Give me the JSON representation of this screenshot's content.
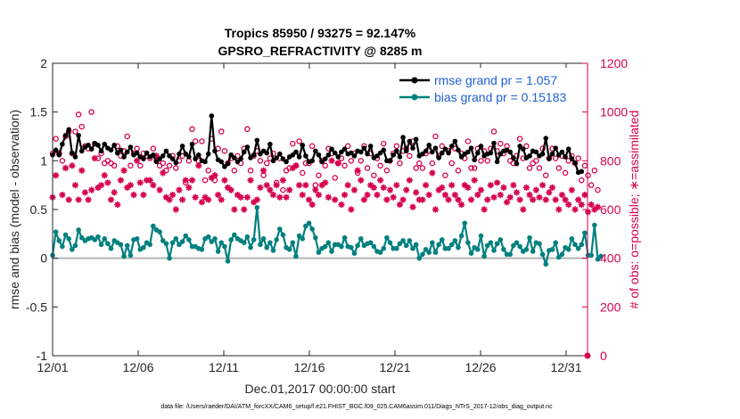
{
  "chart_data": {
    "type": "line",
    "title_line1": "Tropics 85950 / 93275 = 92.147%",
    "title_line2": "GPSRO_REFRACTIVITY @ 8285 m",
    "xlabel": "Dec.01,2017 00:00:00 start",
    "ylabel_left": "rmse and bias (model - observation)",
    "ylabel_right": "# of obs: o=possible; ∗=assimilated",
    "footnote": "data file: /Users/raeder/DAI/ATM_forcXX/CAM6_setup/f.e21.FHIST_BGC.f09_025.CAM6assim.011/Diags_NTrS_2017-12/obs_diag_output.nc",
    "x_ticks": [
      "12/01",
      "12/06",
      "12/11",
      "12/16",
      "12/21",
      "12/26",
      "12/31"
    ],
    "x_tick_days": [
      0,
      5,
      10,
      15,
      20,
      25,
      30
    ],
    "xlim": [
      0,
      31.25
    ],
    "ylim_left": [
      -1,
      2
    ],
    "y_ticks_left": [
      "-1",
      "-0.5",
      "0",
      "0.5",
      "1",
      "1.5",
      "2"
    ],
    "y_tick_values_left": [
      -1,
      -0.5,
      0,
      0.5,
      1,
      1.5,
      2
    ],
    "ylim_right": [
      0,
      1200
    ],
    "y_ticks_right": [
      "0",
      "200",
      "400",
      "600",
      "800",
      "1000",
      "1200"
    ],
    "y_tick_values_right": [
      0,
      200,
      400,
      600,
      800,
      1000,
      1200
    ],
    "legend": [
      "rmse grand pr = 1.057",
      "bias grand pr = 0.15183"
    ],
    "legend_position": "top-right",
    "colors": {
      "rmse": "#000000",
      "bias": "#00807f",
      "obs": "#d6004f",
      "zero": "#b3b3b3",
      "legend_text": "#1f5fd6"
    },
    "rmse": [
      1.06,
      1.11,
      1.06,
      1.17,
      1.26,
      1.32,
      1.08,
      1.04,
      1.26,
      1.1,
      1.14,
      1.16,
      1.12,
      1.18,
      1.16,
      1.1,
      1.17,
      1.13,
      1.11,
      1.16,
      1.08,
      1.11,
      1.04,
      1.09,
      1.14,
      1.06,
      1.08,
      1.04,
      1.02,
      1.08,
      1.04,
      1.06,
      0.99,
      1.02,
      1.05,
      1.1,
      1.05,
      1.02,
      0.98,
      1.07,
      1.15,
      1.07,
      1.04,
      1.17,
      1.02,
      1.06,
      1.0,
      0.99,
      1.07,
      1.46,
      1.1,
      1.01,
      0.99,
      0.94,
      0.97,
      1.06,
      1.03,
      0.99,
      1.02,
      1.09,
      1.14,
      1.03,
      1.06,
      1.21,
      1.07,
      1.1,
      1.08,
      1.17,
      1.0,
      1.03,
      1.07,
      1.02,
      0.99,
      1.04,
      1.06,
      1.09,
      1.04,
      1.16,
      1.05,
      0.99,
      1.0,
      1.1,
      1.06,
      0.99,
      1.02,
      1.06,
      1.12,
      1.08,
      1.04,
      1.09,
      1.12,
      1.07,
      1.08,
      1.05,
      1.1,
      1.09,
      1.13,
      1.07,
      1.15,
      1.03,
      1.05,
      1.08,
      1.11,
      1.0,
      1.0,
      1.06,
      1.1,
      1.04,
      1.24,
      1.1,
      1.2,
      1.13,
      1.22,
      1.05,
      1.07,
      1.1,
      1.16,
      1.09,
      1.13,
      1.03,
      1.08,
      1.12,
      1.08,
      1.15,
      1.2,
      1.11,
      1.04,
      1.07,
      1.09,
      1.13,
      1.01,
      1.08,
      1.15,
      1.05,
      1.07,
      1.08,
      1.18,
      0.99,
      1.07,
      1.1,
      1.11,
      1.09,
      1.03,
      0.97,
      1.15,
      1.12,
      1.03,
      1.05,
      1.1,
      1.09,
      1.05,
      1.07,
      1.23,
      1.02,
      1.07,
      1.13,
      1.06,
      1.09,
      1.04,
      1.12,
      1.02,
      0.98,
      0.88,
      0.89
    ],
    "bias": [
      0.03,
      0.27,
      0.18,
      0.12,
      0.24,
      0.2,
      0.09,
      0.13,
      0.29,
      0.21,
      0.18,
      0.2,
      0.21,
      0.19,
      0.22,
      0.14,
      0.2,
      0.15,
      0.1,
      0.18,
      0.16,
      0.14,
      0.02,
      0.13,
      0.03,
      0.19,
      0.2,
      0.09,
      0.11,
      0.16,
      0.14,
      0.33,
      0.29,
      0.27,
      0.18,
      0.15,
      0.0,
      0.16,
      0.2,
      0.14,
      0.17,
      0.23,
      0.19,
      0.12,
      0.12,
      0.1,
      0.09,
      0.2,
      0.22,
      0.17,
      0.2,
      0.07,
      0.16,
      0.12,
      -0.03,
      0.19,
      0.24,
      0.2,
      0.18,
      0.16,
      0.22,
      0.11,
      0.19,
      0.52,
      0.14,
      0.2,
      0.11,
      0.16,
      0.08,
      0.19,
      0.3,
      0.24,
      0.11,
      0.09,
      0.16,
      0.02,
      0.23,
      0.2,
      0.33,
      0.36,
      0.3,
      0.21,
      0.06,
      0.1,
      0.12,
      0.16,
      0.07,
      0.14,
      0.14,
      0.12,
      0.21,
      0.12,
      0.11,
      0.05,
      0.13,
      0.2,
      0.13,
      0.15,
      0.16,
      0.12,
      0.07,
      0.06,
      0.1,
      0.21,
      0.16,
      0.1,
      0.1,
      0.15,
      0.18,
      0.13,
      0.18,
      0.1,
      0.14,
      0.0,
      0.04,
      0.09,
      0.06,
      0.16,
      0.06,
      0.14,
      0.19,
      0.1,
      0.1,
      0.14,
      0.18,
      0.11,
      0.23,
      0.36,
      0.16,
      0.05,
      0.11,
      0.09,
      0.23,
      0.02,
      0.13,
      0.16,
      0.08,
      0.15,
      0.19,
      0.09,
      0.04,
      0.04,
      0.13,
      0.16,
      0.12,
      0.07,
      0.09,
      0.21,
      0.07,
      0.16,
      0.15,
      0.04,
      -0.06,
      0.08,
      0.09,
      0.16,
      0.01,
      0.04,
      0.11,
      0.09,
      0.2,
      0.14,
      0.1,
      0.14,
      0.26,
      0.03,
      0.03,
      0.34,
      -0.01,
      0.02
    ],
    "obs_possible": [
      830,
      890,
      830,
      800,
      900,
      920,
      830,
      920,
      990,
      940,
      860,
      850,
      1000,
      870,
      810,
      830,
      790,
      800,
      790,
      780,
      860,
      820,
      840,
      900,
      780,
      830,
      850,
      780,
      830,
      820,
      810,
      850,
      800,
      780,
      790,
      760,
      780,
      820,
      770,
      800,
      820,
      710,
      800,
      930,
      880,
      800,
      880,
      720,
      760,
      890,
      720,
      850,
      920,
      840,
      790,
      810,
      760,
      820,
      790,
      850,
      930,
      760,
      820,
      840,
      800,
      740,
      790,
      810,
      830,
      710,
      810,
      680,
      760,
      770,
      870,
      780,
      880,
      750,
      790,
      790,
      860,
      700,
      740,
      800,
      780,
      850,
      830,
      730,
      790,
      810,
      780,
      860,
      800,
      830,
      750,
      800,
      860,
      770,
      830,
      740,
      810,
      780,
      870,
      760,
      800,
      830,
      860,
      790,
      840,
      850,
      820,
      880,
      770,
      790,
      770,
      830,
      840,
      790,
      900,
      820,
      860,
      740,
      840,
      790,
      850,
      760,
      830,
      810,
      880,
      770,
      770,
      850,
      800,
      840,
      800,
      850,
      920,
      840,
      870,
      830,
      860,
      800,
      790,
      820,
      890,
      810,
      860,
      770,
      790,
      800,
      770,
      850,
      740,
      810,
      850,
      810,
      770,
      820,
      750,
      800,
      820,
      790,
      810,
      720,
      780,
      740,
      700,
      760,
      680
    ],
    "obs_assimilated": [
      650,
      740,
      830,
      660,
      770,
      640,
      780,
      700,
      640,
      760,
      670,
      640,
      680,
      810,
      690,
      700,
      740,
      710,
      640,
      670,
      620,
      720,
      760,
      690,
      700,
      660,
      800,
      710,
      660,
      720,
      720,
      700,
      820,
      680,
      750,
      650,
      640,
      660,
      600,
      680,
      640,
      720,
      690,
      720,
      650,
      780,
      630,
      650,
      640,
      730,
      740,
      660,
      640,
      720,
      690,
      680,
      600,
      660,
      650,
      600,
      650,
      720,
      630,
      640,
      690,
      760,
      700,
      680,
      660,
      700,
      650,
      720,
      650,
      680,
      770,
      780,
      700,
      660,
      700,
      640,
      620,
      680,
      660,
      700,
      710,
      650,
      800,
      640,
      790,
      620,
      660,
      700,
      600,
      680,
      760,
      720,
      640,
      660,
      700,
      690,
      660,
      720,
      690,
      640,
      680,
      650,
      700,
      620,
      640,
      680,
      720,
      610,
      670,
      640,
      640,
      700,
      660,
      750,
      600,
      680,
      690,
      660,
      640,
      700,
      660,
      640,
      620,
      700,
      690,
      640,
      720,
      660,
      680,
      600,
      640,
      700,
      650,
      710,
      660,
      690,
      630,
      650,
      700,
      670,
      640,
      600,
      690,
      660,
      640,
      680,
      650,
      700,
      640,
      670,
      690,
      640,
      600,
      660,
      640,
      620,
      680,
      600,
      640,
      620,
      660,
      590,
      620,
      600,
      610
    ]
  }
}
